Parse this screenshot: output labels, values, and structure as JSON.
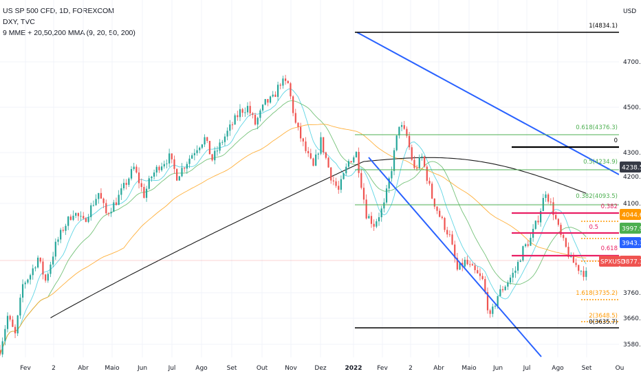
{
  "header": {
    "title": "US SP 500 CFD, 1D, FOREXCOM",
    "compare": "DXY, TVC",
    "indicator": "9 MME + 20,50,200 MMA (9, 20, 50, 200)"
  },
  "chart_data": {
    "type": "candlestick",
    "currency": "USD",
    "y_ticks": [
      "4700.0",
      "4500.0",
      "4300.0",
      "4200.0",
      "4100.0",
      "3760.0",
      "3660.0",
      "3580.0"
    ],
    "x_ticks": [
      "Fev",
      "2",
      "Abr",
      "Maio",
      "Jun",
      "Jul",
      "Ago",
      "Set",
      "Out",
      "Nov",
      "Dez",
      "2022",
      "Fev",
      "2",
      "Abr",
      "Maio",
      "Jun",
      "Jul",
      "Ago",
      "Set",
      "Ou"
    ],
    "fib_levels": [
      {
        "label": "1(4834.1)",
        "value": 4834.1,
        "color": "#000000"
      },
      {
        "label": "0.618(4376.3)",
        "value": 4376.3,
        "color": "#4caf50"
      },
      {
        "label": "0",
        "value": 4318,
        "color": "#000000"
      },
      {
        "label": "0.5(4234.9)",
        "value": 4234.9,
        "color": "#4caf50"
      },
      {
        "label": "0.382(4093.5)",
        "value": 4093.5,
        "color": "#4caf50"
      },
      {
        "label": "0.382",
        "value": 4074,
        "color": "#e91e63"
      },
      {
        "label": "0.5",
        "value": 4005,
        "color": "#e91e63"
      },
      {
        "label": "0.618",
        "value": 3925,
        "color": "#e91e63"
      },
      {
        "label": "1.618(3735.2)",
        "value": 3735.2,
        "color": "#ff9800"
      },
      {
        "label": "2(3648.5)",
        "value": 3648.5,
        "color": "#ff9800"
      },
      {
        "label": "0(3635.7)",
        "value": 3635.7,
        "color": "#000000"
      }
    ],
    "price_tags": [
      {
        "text": "4238.5",
        "color": "#363a45"
      },
      {
        "text": "4044.6",
        "color": "#ff9800"
      },
      {
        "text": "3997.9",
        "color": "#4caf50"
      },
      {
        "text": "3943.3",
        "color": "#2962ff"
      },
      {
        "text": "3877.3",
        "color": "#ef5350"
      }
    ],
    "symbol_tag": "SPXUSD",
    "last_price": 3877.3,
    "moving_averages": [
      {
        "name": "9",
        "color": "#4dd0e1"
      },
      {
        "name": "20",
        "color": "#66bb6a"
      },
      {
        "name": "50",
        "color": "#ffa726"
      },
      {
        "name": "200",
        "color": "#000000"
      }
    ],
    "close_path": [
      [
        0,
        3520
      ],
      [
        3,
        3680
      ],
      [
        6,
        3590
      ],
      [
        9,
        3830
      ],
      [
        12,
        3880
      ],
      [
        15,
        3960
      ],
      [
        18,
        3850
      ],
      [
        22,
        4020
      ],
      [
        25,
        4100
      ],
      [
        29,
        4180
      ],
      [
        33,
        4130
      ],
      [
        36,
        4200
      ],
      [
        39,
        4270
      ],
      [
        42,
        4170
      ],
      [
        46,
        4230
      ],
      [
        50,
        4320
      ],
      [
        53,
        4390
      ],
      [
        57,
        4260
      ],
      [
        60,
        4350
      ],
      [
        63,
        4400
      ],
      [
        67,
        4440
      ],
      [
        70,
        4350
      ],
      [
        74,
        4420
      ],
      [
        78,
        4490
      ],
      [
        81,
        4530
      ],
      [
        84,
        4430
      ],
      [
        88,
        4520
      ],
      [
        91,
        4580
      ],
      [
        95,
        4660
      ],
      [
        98,
        4680
      ],
      [
        101,
        4600
      ],
      [
        105,
        4700
      ],
      [
        108,
        4720
      ],
      [
        111,
        4800
      ],
      [
        114,
        4790
      ],
      [
        117,
        4600
      ],
      [
        121,
        4470
      ],
      [
        124,
        4390
      ],
      [
        127,
        4520
      ],
      [
        131,
        4350
      ],
      [
        134,
        4280
      ],
      [
        138,
        4420
      ],
      [
        141,
        4460
      ],
      [
        145,
        4170
      ],
      [
        148,
        4120
      ],
      [
        152,
        4210
      ],
      [
        155,
        4390
      ],
      [
        158,
        4600
      ],
      [
        161,
        4540
      ],
      [
        164,
        4380
      ],
      [
        167,
        4440
      ],
      [
        171,
        4250
      ],
      [
        174,
        4160
      ],
      [
        178,
        4060
      ],
      [
        181,
        3900
      ],
      [
        184,
        3940
      ],
      [
        188,
        3890
      ],
      [
        191,
        3850
      ],
      [
        194,
        3670
      ],
      [
        197,
        3780
      ],
      [
        200,
        3830
      ],
      [
        204,
        3900
      ],
      [
        207,
        4000
      ],
      [
        210,
        4050
      ],
      [
        213,
        4150
      ],
      [
        216,
        4280
      ],
      [
        219,
        4180
      ],
      [
        222,
        4060
      ],
      [
        226,
        3950
      ],
      [
        229,
        3910
      ],
      [
        232,
        3880
      ]
    ]
  }
}
